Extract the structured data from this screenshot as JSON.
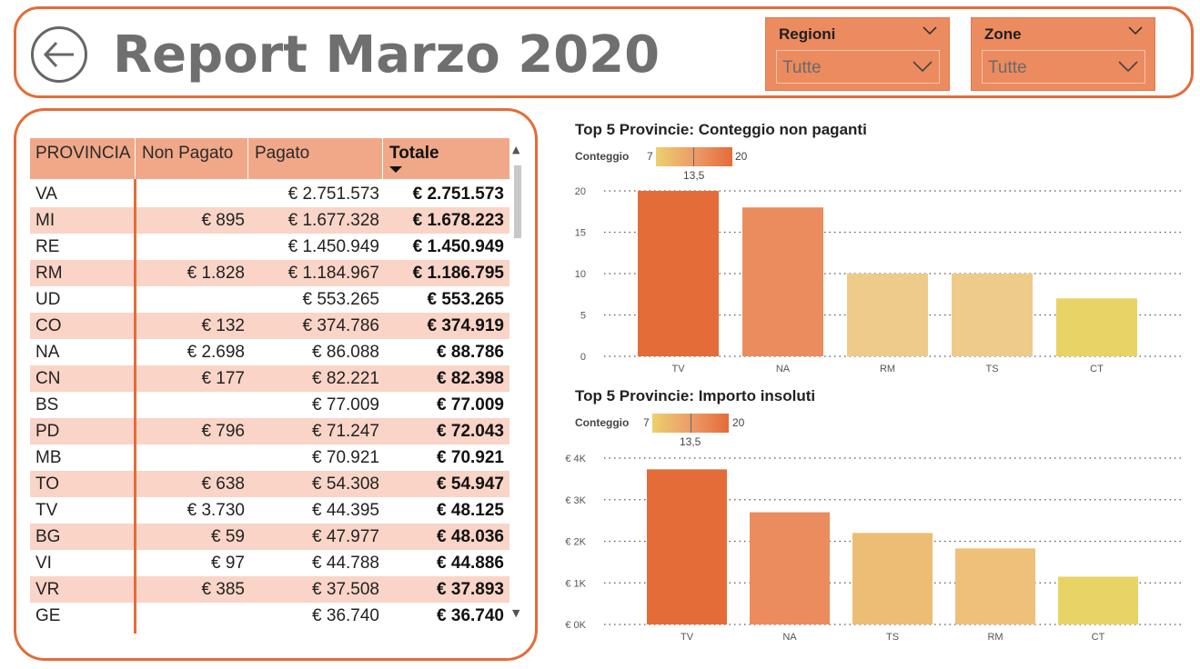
{
  "header": {
    "title": "Report Marzo 2020"
  },
  "slicers": [
    {
      "title": "Regioni",
      "value": "Tutte"
    },
    {
      "title": "Zone",
      "value": "Tutte"
    }
  ],
  "table": {
    "columns": [
      "PROVINCIA",
      "Non Pagato",
      "Pagato",
      "Totale"
    ],
    "sort_column": "Totale",
    "rows": [
      {
        "provincia": "VA",
        "non_pagato": "",
        "pagato": "€ 2.751.573",
        "totale": "€ 2.751.573"
      },
      {
        "provincia": "MI",
        "non_pagato": "€ 895",
        "pagato": "€ 1.677.328",
        "totale": "€ 1.678.223"
      },
      {
        "provincia": "RE",
        "non_pagato": "",
        "pagato": "€ 1.450.949",
        "totale": "€ 1.450.949"
      },
      {
        "provincia": "RM",
        "non_pagato": "€ 1.828",
        "pagato": "€ 1.184.967",
        "totale": "€ 1.186.795"
      },
      {
        "provincia": "UD",
        "non_pagato": "",
        "pagato": "€ 553.265",
        "totale": "€ 553.265"
      },
      {
        "provincia": "CO",
        "non_pagato": "€ 132",
        "pagato": "€ 374.786",
        "totale": "€ 374.919"
      },
      {
        "provincia": "NA",
        "non_pagato": "€ 2.698",
        "pagato": "€ 86.088",
        "totale": "€ 88.786"
      },
      {
        "provincia": "CN",
        "non_pagato": "€ 177",
        "pagato": "€ 82.221",
        "totale": "€ 82.398"
      },
      {
        "provincia": "BS",
        "non_pagato": "",
        "pagato": "€ 77.009",
        "totale": "€ 77.009"
      },
      {
        "provincia": "PD",
        "non_pagato": "€ 796",
        "pagato": "€ 71.247",
        "totale": "€ 72.043"
      },
      {
        "provincia": "MB",
        "non_pagato": "",
        "pagato": "€ 70.921",
        "totale": "€ 70.921"
      },
      {
        "provincia": "TO",
        "non_pagato": "€ 638",
        "pagato": "€ 54.308",
        "totale": "€ 54.947"
      },
      {
        "provincia": "TV",
        "non_pagato": "€ 3.730",
        "pagato": "€ 44.395",
        "totale": "€ 48.125"
      },
      {
        "provincia": "BG",
        "non_pagato": "€ 59",
        "pagato": "€ 47.977",
        "totale": "€ 48.036"
      },
      {
        "provincia": "VI",
        "non_pagato": "€ 97",
        "pagato": "€ 44.788",
        "totale": "€ 44.886"
      },
      {
        "provincia": "VR",
        "non_pagato": "€ 385",
        "pagato": "€ 37.508",
        "totale": "€ 37.893"
      },
      {
        "provincia": "GE",
        "non_pagato": "",
        "pagato": "€ 36.740",
        "totale": "€ 36.740"
      }
    ]
  },
  "icons": {
    "back": "arrow-left-circle-icon",
    "dropdown": "chevron-down-icon"
  },
  "colors": {
    "accent": "#e46c38",
    "header_bg": "#f0a888",
    "row_alt": "#f9d4c7",
    "slicer_bg": "#ec8b5f",
    "title_gray": "#6f6f6f"
  },
  "chart_data": [
    {
      "type": "bar",
      "title": "Top 5 Provincie: Conteggio non paganti",
      "categories": [
        "TV",
        "NA",
        "RM",
        "TS",
        "CT"
      ],
      "values": [
        20,
        18,
        10,
        10,
        7
      ],
      "bar_colors": [
        "#e46c38",
        "#ea8c5e",
        "#eecb8a",
        "#eecb8a",
        "#e8d366"
      ],
      "ylim": [
        0,
        20
      ],
      "yticks": [
        0,
        5,
        10,
        15,
        20
      ],
      "ytick_labels": [
        "0",
        "5",
        "10",
        "15",
        "20"
      ],
      "legend": {
        "label": "Conteggio",
        "min": "7",
        "mid": "13,5",
        "max": "20"
      },
      "grid": true
    },
    {
      "type": "bar",
      "title": "Top 5 Provincie: Importo insoluti",
      "categories": [
        "TV",
        "NA",
        "TS",
        "RM",
        "CT"
      ],
      "values": [
        3730,
        2698,
        2200,
        1828,
        1150
      ],
      "bar_colors": [
        "#e46c38",
        "#ea8c5e",
        "#edbd75",
        "#efc07a",
        "#e8d366"
      ],
      "ylim": [
        0,
        4000
      ],
      "yticks": [
        0,
        1000,
        2000,
        3000,
        4000
      ],
      "ytick_labels": [
        "€ 0K",
        "€ 1K",
        "€ 2K",
        "€ 3K",
        "€ 4K"
      ],
      "legend": {
        "label": "Conteggio",
        "min": "7",
        "mid": "13,5",
        "max": "20"
      },
      "grid": true
    }
  ]
}
